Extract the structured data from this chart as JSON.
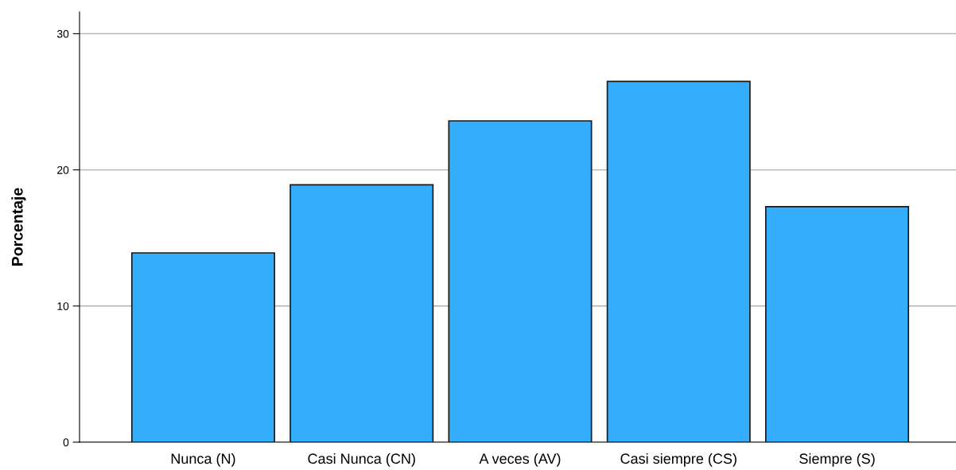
{
  "chart_data": {
    "type": "bar",
    "ylabel": "Porcentaje",
    "categories": [
      "Nunca (N)",
      "Casi Nunca (CN)",
      "A veces (AV)",
      "Casi siempre (CS)",
      "Siempre (S)"
    ],
    "values": [
      13.9,
      18.9,
      23.6,
      26.5,
      17.3
    ],
    "color": "#33adfc",
    "ylim": [
      0,
      31.6
    ],
    "yticks": [
      0,
      10,
      20,
      30
    ],
    "grid": "y"
  }
}
